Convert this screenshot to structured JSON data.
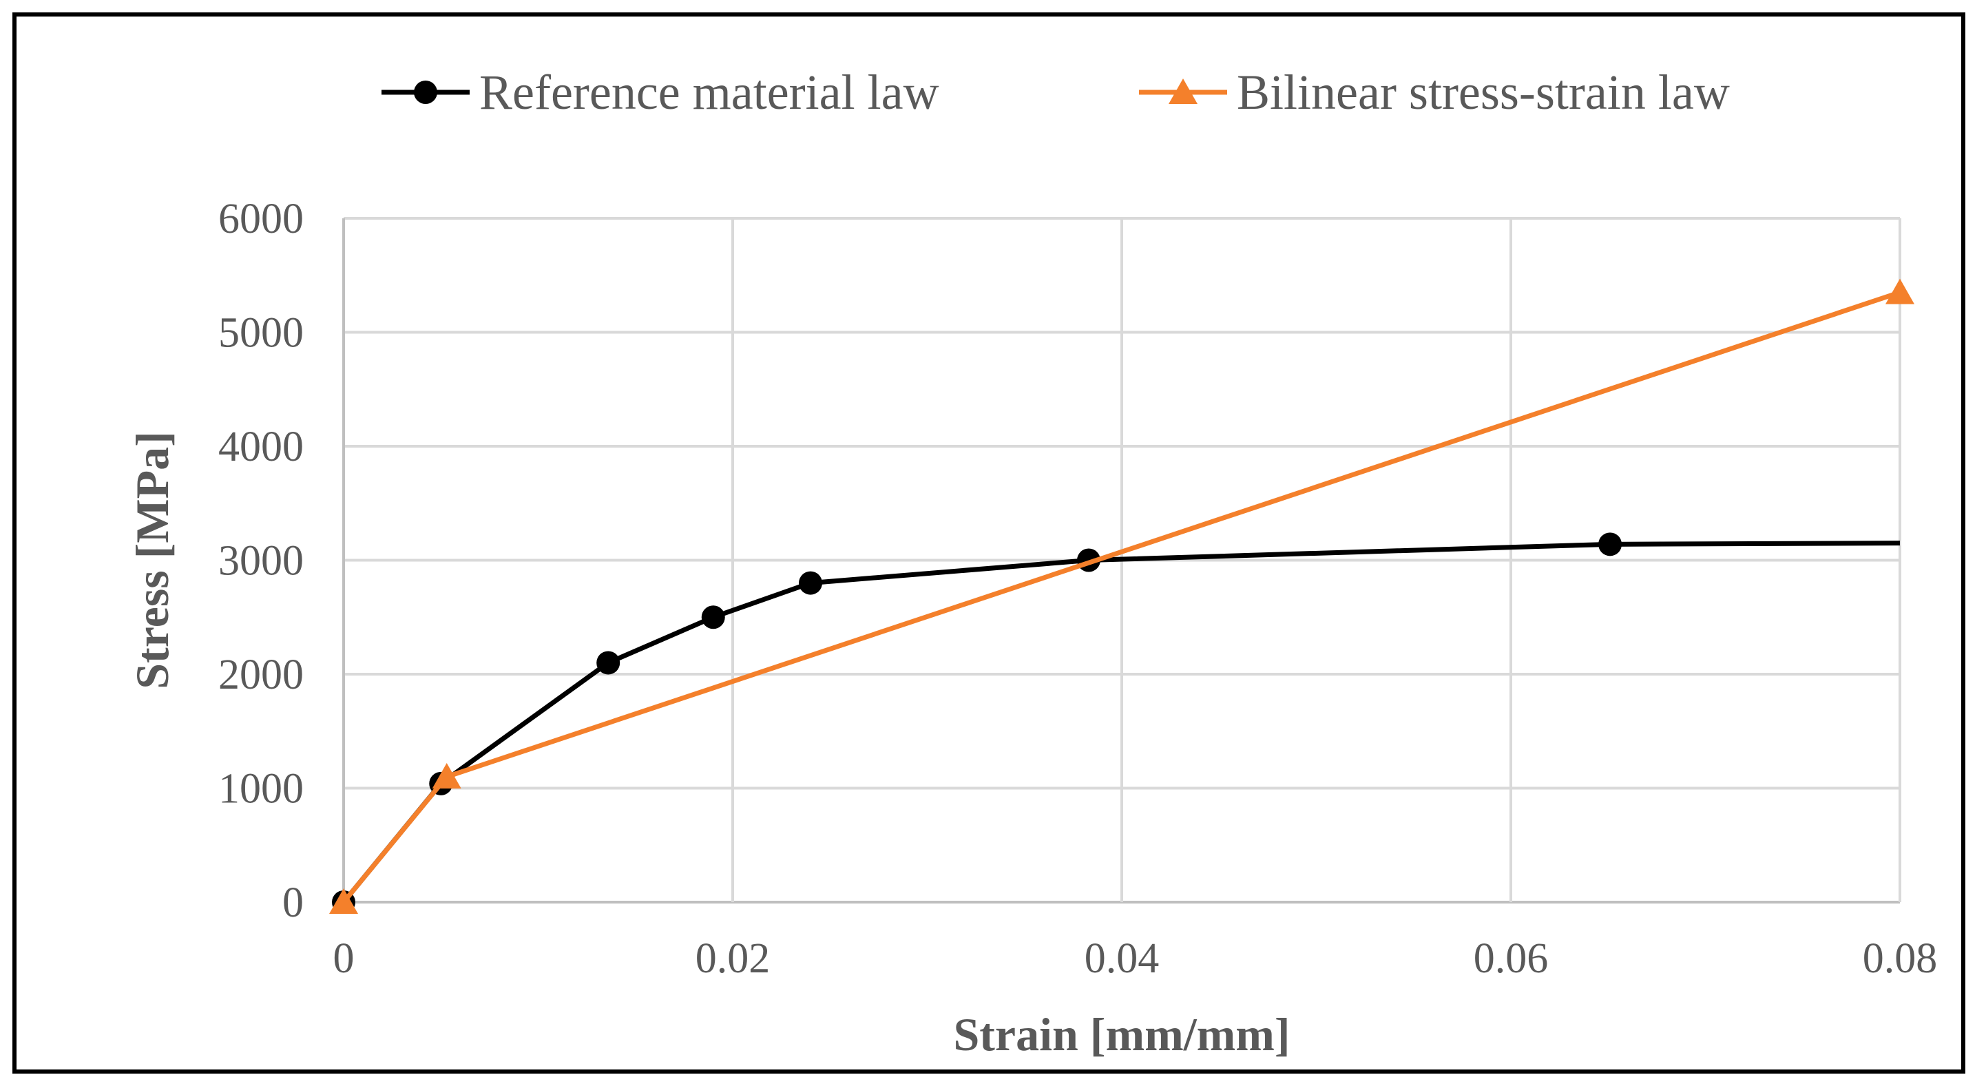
{
  "chart_data": {
    "type": "line",
    "title": "",
    "xlabel": "Strain [mm/mm]",
    "ylabel": "Stress [MPa]",
    "xlim": [
      0,
      0.08
    ],
    "ylim": [
      0,
      6000
    ],
    "x_ticks": [
      0,
      0.02,
      0.04,
      0.06,
      0.08
    ],
    "x_tick_labels": [
      "0",
      "0.02",
      "0.04",
      "0.06",
      "0.08"
    ],
    "y_ticks": [
      0,
      1000,
      2000,
      3000,
      4000,
      5000,
      6000
    ],
    "y_tick_labels": [
      "0",
      "1000",
      "2000",
      "3000",
      "4000",
      "5000",
      "6000"
    ],
    "grid": true,
    "legend_position": "top-center",
    "series": [
      {
        "name": "Reference material law",
        "color": "#000000",
        "marker": "circle",
        "x": [
          0,
          0.005,
          0.0136,
          0.019,
          0.024,
          0.0383,
          0.0651,
          0.08
        ],
        "y": [
          0,
          1040,
          2100,
          2500,
          2800,
          3000,
          3140,
          3150
        ],
        "markers": [
          true,
          true,
          true,
          true,
          true,
          true,
          true,
          false
        ]
      },
      {
        "name": "Bilinear stress-strain law",
        "color": "#F4802B",
        "marker": "triangle",
        "x": [
          0,
          0.0053,
          0.08
        ],
        "y": [
          0,
          1100,
          5350
        ],
        "markers": [
          true,
          true,
          true
        ]
      }
    ]
  }
}
